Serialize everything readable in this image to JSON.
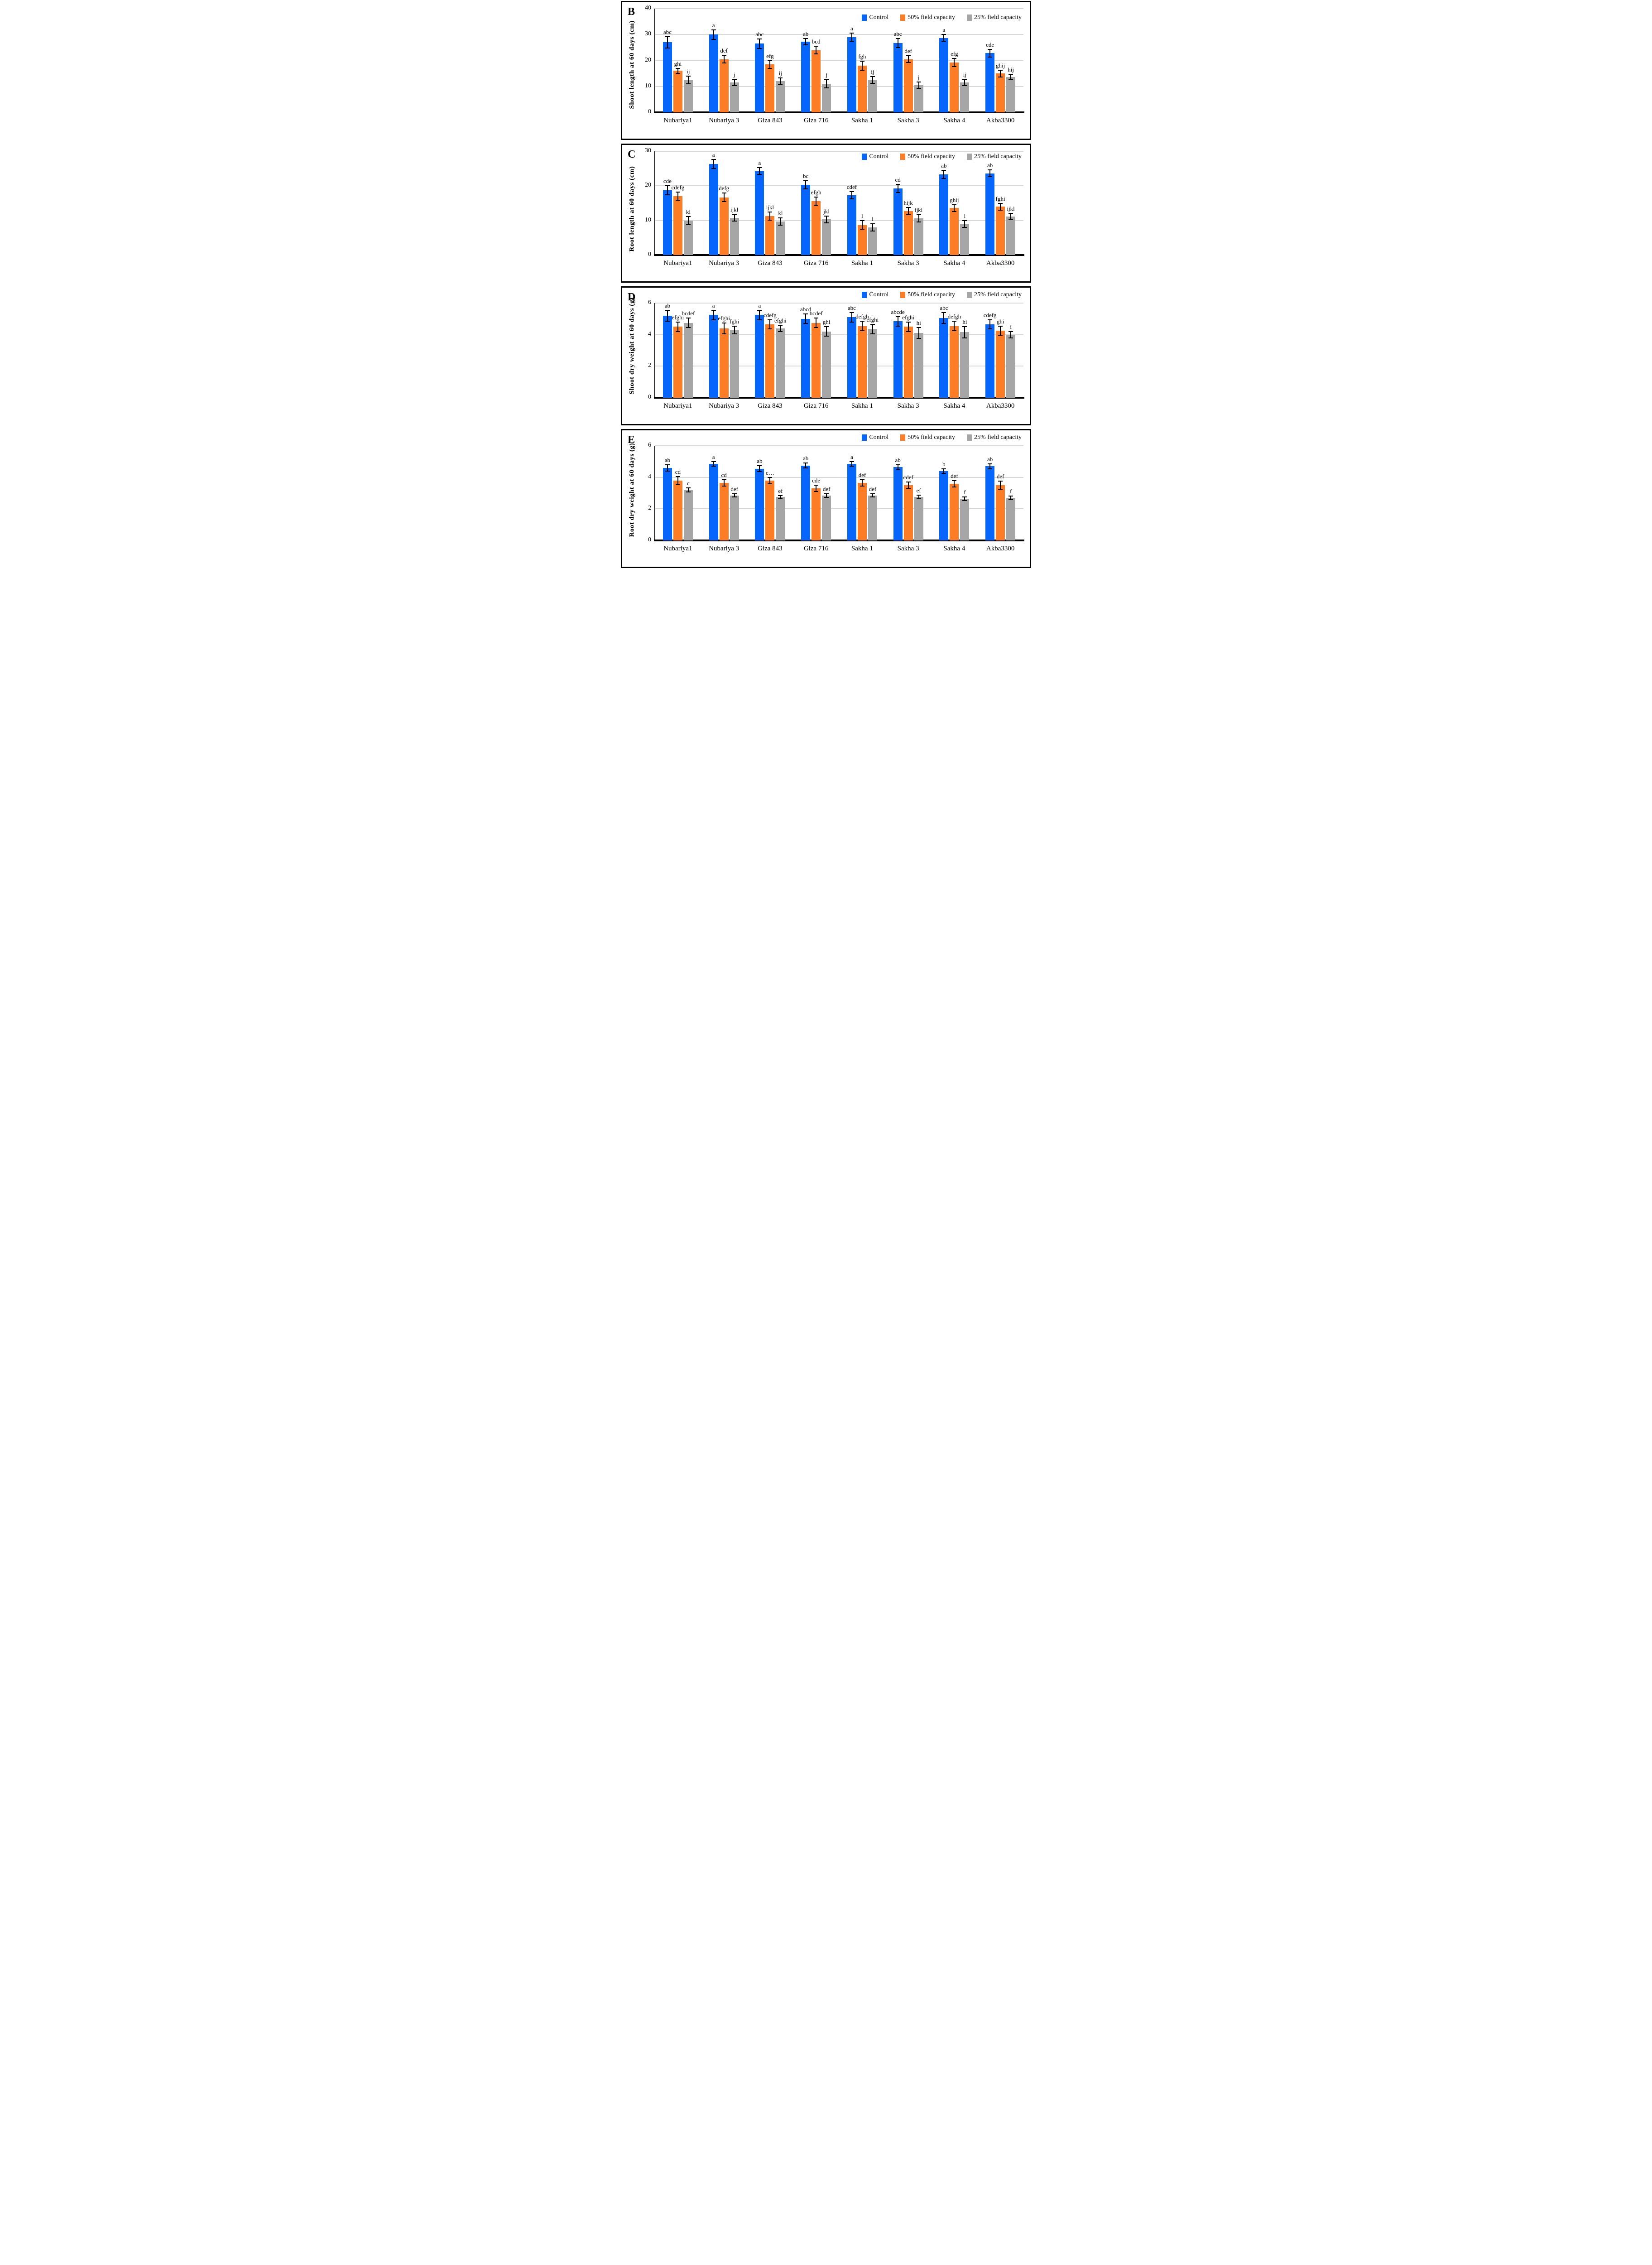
{
  "legend": {
    "items": [
      {
        "label": "Control",
        "color": "#0666FC"
      },
      {
        "label": "50% field capacity",
        "color": "#FC7D25"
      },
      {
        "label": "25% field capacity",
        "color": "#A6A6A6"
      }
    ]
  },
  "colors": {
    "control": "#0666FC",
    "fc50": "#FC7D25",
    "fc25": "#A6A6A6",
    "gridline": "#D9D9D9",
    "axis": "#000000"
  },
  "chart_data": [
    {
      "type": "bar",
      "panel": "B",
      "ylabel": "Shoot length at 60 days (cm)",
      "ymax": 40,
      "yticks": [
        0,
        10,
        20,
        30,
        40
      ],
      "grid": true,
      "legend_position": "top-right-inside",
      "categories": [
        "Nubariya1",
        "Nubariya 3",
        "Giza 843",
        "Giza 716",
        "Sakha 1",
        "Sakha 3",
        "Sakha 4",
        "Akba3300"
      ],
      "series": [
        {
          "name": "Control",
          "values": [
            27,
            30,
            26.5,
            27.3,
            29,
            26.7,
            28.7,
            22.8
          ],
          "errors": [
            2.2,
            1.8,
            1.8,
            1.2,
            1.5,
            1.8,
            1.3,
            1.5
          ],
          "letters": [
            "abc",
            "a",
            "abc",
            "ab",
            "a",
            "abc",
            "a",
            "cde"
          ]
        },
        {
          "name": "50% field capacity",
          "values": [
            16,
            20.5,
            18.5,
            24,
            18,
            20.5,
            19.2,
            15
          ],
          "errors": [
            1.0,
            1.5,
            1.5,
            1.5,
            1.8,
            1.3,
            1.5,
            1.3
          ],
          "letters": [
            "ghi",
            "def",
            "efg",
            "bcd",
            "fgh",
            "def",
            "efg",
            "ghij"
          ]
        },
        {
          "name": "25% field capacity",
          "values": [
            12.5,
            11.5,
            12,
            11,
            12.5,
            10.5,
            11.5,
            13.7
          ],
          "errors": [
            1.5,
            1.2,
            1.2,
            1.5,
            1.3,
            1.2,
            1.2,
            1.0
          ],
          "letters": [
            "ij",
            "j",
            "ij",
            "j",
            "ij",
            "j",
            "ij",
            "hij"
          ]
        }
      ]
    },
    {
      "type": "bar",
      "panel": "C",
      "ylabel": "Root length at 60 days (cm)",
      "ymax": 30,
      "yticks": [
        0,
        10,
        20,
        30
      ],
      "grid": true,
      "legend_position": "top-right-inside",
      "categories": [
        "Nubariya1",
        "Nubariya 3",
        "Giza 843",
        "Giza 716",
        "Sakha 1",
        "Sakha 3",
        "Sakha 4",
        "Akba3300"
      ],
      "series": [
        {
          "name": "Control",
          "values": [
            18.7,
            26.3,
            24.3,
            20.3,
            17.3,
            19.3,
            23.3,
            23.6
          ],
          "errors": [
            1.3,
            1.3,
            1.0,
            1.2,
            1.0,
            1.2,
            1.2,
            1.0
          ],
          "letters": [
            "cde",
            "a",
            "a",
            "bc",
            "cdef",
            "cd",
            "ab",
            "ab"
          ]
        },
        {
          "name": "50% field capacity",
          "values": [
            17,
            16.7,
            11.3,
            15.6,
            8.7,
            12.7,
            13.6,
            14
          ],
          "errors": [
            1.2,
            1.2,
            1.2,
            1.2,
            1.2,
            1.0,
            1.0,
            1.0
          ],
          "letters": [
            "cdefg",
            "defg",
            "ijkl",
            "efgh",
            "l",
            "hijk",
            "ghij",
            "fghi"
          ]
        },
        {
          "name": "25% field capacity",
          "values": [
            10,
            10.8,
            9.7,
            10.3,
            8,
            10.6,
            9,
            11.2
          ],
          "errors": [
            1.2,
            1.0,
            1.0,
            1.0,
            1.0,
            1.0,
            1.0,
            0.9
          ],
          "letters": [
            "kl",
            "ijkl",
            "kl",
            "jkl",
            "l",
            "ijkl",
            "l",
            "ijkl"
          ]
        }
      ]
    },
    {
      "type": "bar",
      "panel": "D",
      "ylabel": "Shoot dry weight at 60 days (g)",
      "ymax": 6,
      "yticks": [
        0,
        2,
        4,
        6
      ],
      "grid": true,
      "legend_position": "top-right-above",
      "categories": [
        "Nubariya1",
        "Nubariya 3",
        "Giza 843",
        "Giza 716",
        "Sakha 1",
        "Sakha 3",
        "Sakha 4",
        "Akba3300"
      ],
      "series": [
        {
          "name": "Control",
          "values": [
            5.2,
            5.25,
            5.25,
            5.0,
            5.1,
            4.85,
            5.05,
            4.65
          ],
          "errors": [
            0.35,
            0.3,
            0.3,
            0.3,
            0.3,
            0.3,
            0.35,
            0.3
          ],
          "letters": [
            "ab",
            "a",
            "a",
            "abcd",
            "abc",
            "abcde",
            "abc",
            "cdefg"
          ]
        },
        {
          "name": "50% field capacity",
          "values": [
            4.5,
            4.4,
            4.65,
            4.75,
            4.55,
            4.5,
            4.55,
            4.25
          ],
          "errors": [
            0.3,
            0.35,
            0.3,
            0.3,
            0.3,
            0.3,
            0.3,
            0.3
          ],
          "letters": [
            "efghi",
            "efghi",
            "cdefg",
            "bcdef",
            "defgh",
            "efghi",
            "defgh",
            "ghi"
          ]
        },
        {
          "name": "25% field capacity",
          "values": [
            4.75,
            4.3,
            4.4,
            4.2,
            4.35,
            4.1,
            4.15,
            4.0
          ],
          "errors": [
            0.3,
            0.25,
            0.2,
            0.3,
            0.3,
            0.35,
            0.35,
            0.2
          ],
          "letters": [
            "bcdef",
            "fghi",
            "efghi",
            "ghi",
            "efghi",
            "hi",
            "hi",
            "i"
          ]
        }
      ]
    },
    {
      "type": "bar",
      "panel": "E",
      "ylabel": "Root dry weight at 60 days (g)",
      "ymax": 6,
      "yticks": [
        0,
        2,
        4,
        6
      ],
      "grid": true,
      "legend_position": "top-right-above",
      "categories": [
        "Nubariya1",
        "Nubariya 3",
        "Giza 843",
        "Giza 716",
        "Sakha 1",
        "Sakha 3",
        "Sakha 4",
        "Akba3300"
      ],
      "series": [
        {
          "name": "Control",
          "values": [
            4.6,
            4.85,
            4.55,
            4.75,
            4.85,
            4.65,
            4.4,
            4.7
          ],
          "errors": [
            0.2,
            0.15,
            0.2,
            0.15,
            0.15,
            0.15,
            0.15,
            0.15
          ],
          "letters": [
            "ab",
            "a",
            "ab",
            "ab",
            "a",
            "ab",
            "b",
            "ab"
          ]
        },
        {
          "name": "50% field capacity",
          "values": [
            3.8,
            3.65,
            3.8,
            3.3,
            3.65,
            3.5,
            3.6,
            3.5
          ],
          "errors": [
            0.25,
            0.2,
            0.2,
            0.2,
            0.2,
            0.2,
            0.2,
            0.25
          ],
          "letters": [
            "cd",
            "cd",
            "c…",
            "cde",
            "def",
            "cdef",
            "def",
            "def"
          ]
        },
        {
          "name": "25% field capacity",
          "values": [
            3.2,
            2.85,
            2.75,
            2.85,
            2.85,
            2.75,
            2.65,
            2.7
          ],
          "errors": [
            0.12,
            0.1,
            0.1,
            0.12,
            0.1,
            0.12,
            0.12,
            0.12
          ],
          "letters": [
            "c",
            "def",
            "ef",
            "def",
            "def",
            "ef",
            "f",
            "f"
          ]
        }
      ]
    }
  ]
}
